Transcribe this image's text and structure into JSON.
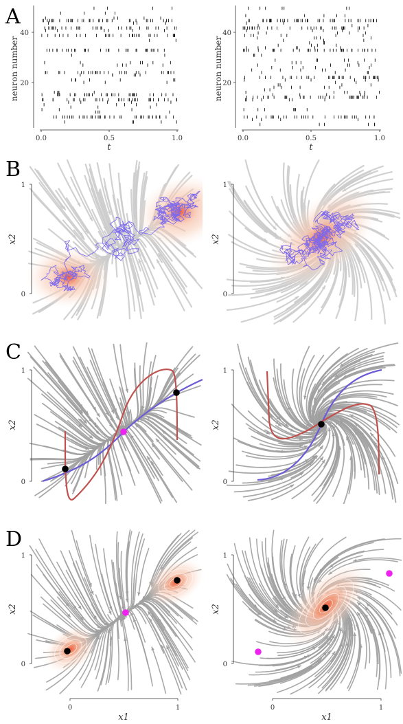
{
  "panel_letters": [
    "A",
    "B",
    "C",
    "D"
  ],
  "colors": {
    "spike": "#111111",
    "stream_light": "#cccccc",
    "stream_dark": "#a0a0a0",
    "density": "#f08060",
    "trajectory": "#7b68ee",
    "nullcline_red": "#c0504d",
    "nullcline_blue": "#6b5bd6",
    "fixed_point_stable": "#000000",
    "fixed_point_saddle": "#ee22ee"
  },
  "raster": {
    "ylabel": "neuron number",
    "xlabel": "t",
    "xticks": [
      "0.0",
      "0.5",
      "1.0"
    ],
    "yticks": [
      "20",
      "40"
    ]
  },
  "phase": {
    "ylabel": "x2",
    "xlabel": "x1",
    "yticks": [
      "0",
      "1"
    ],
    "xticks": [
      "0",
      "1"
    ]
  },
  "chart_data": [
    {
      "panel": "A-left",
      "type": "scatter",
      "xlabel": "t",
      "ylabel": "neuron number",
      "xlim": [
        0,
        1
      ],
      "ylim": [
        1,
        48
      ],
      "xticks": [
        0.0,
        0.5,
        1.0
      ],
      "yticks": [
        20,
        40
      ],
      "dense_neurons": [
        4,
        11,
        13,
        22,
        31,
        37,
        40,
        43
      ]
    },
    {
      "panel": "A-right",
      "type": "scatter",
      "xlabel": "t",
      "ylabel": "neuron number",
      "xlim": [
        0,
        1
      ],
      "ylim": [
        1,
        48
      ],
      "xticks": [
        0.0,
        0.5,
        1.0
      ],
      "yticks": [
        20,
        40
      ],
      "dense_neurons": [
        4,
        12,
        20,
        31,
        40,
        43
      ]
    },
    {
      "panel": "B-left",
      "type": "line",
      "ylabel": "x2",
      "yticks": [
        0,
        1
      ],
      "xlim": [
        -0.25,
        1.25
      ],
      "ylim": [
        -0.3,
        1.1
      ],
      "fixed_points": [
        {
          "x": 0.0,
          "y": 0.11,
          "type": "stable"
        },
        {
          "x": 1.0,
          "y": 0.79,
          "type": "stable"
        }
      ]
    },
    {
      "panel": "B-right",
      "type": "line",
      "ylabel": "x2",
      "yticks": [
        0,
        1
      ],
      "xlim": [
        -0.3,
        1.25
      ],
      "ylim": [
        -0.3,
        1.1
      ],
      "fixed_points": [
        {
          "x": 0.45,
          "y": 0.52,
          "type": "stable"
        }
      ]
    },
    {
      "panel": "C-left",
      "type": "line",
      "ylabel": "x2",
      "yticks": [
        0,
        1
      ],
      "xlim": [
        -0.25,
        1.25
      ],
      "ylim": [
        -0.2,
        1.05
      ],
      "fixed_points": [
        {
          "x": 0.0,
          "y": 0.11,
          "type": "stable"
        },
        {
          "x": 0.52,
          "y": 0.44,
          "type": "saddle"
        },
        {
          "x": 1.0,
          "y": 0.79,
          "type": "stable"
        }
      ]
    },
    {
      "panel": "C-right",
      "type": "line",
      "ylabel": "x2",
      "yticks": [
        0,
        1
      ],
      "xlim": [
        -0.3,
        1.25
      ],
      "ylim": [
        -0.2,
        1.05
      ],
      "fixed_points": [
        {
          "x": 0.45,
          "y": 0.52,
          "type": "stable"
        }
      ]
    },
    {
      "panel": "D-left",
      "type": "line",
      "xlabel": "x1",
      "ylabel": "x2",
      "xticks": [
        0,
        1
      ],
      "yticks": [
        0,
        1
      ],
      "xlim": [
        -0.25,
        1.25
      ],
      "ylim": [
        -0.25,
        1.05
      ],
      "fixed_points": [
        {
          "x": 0.0,
          "y": 0.11,
          "type": "stable"
        },
        {
          "x": 0.52,
          "y": 0.48,
          "type": "saddle"
        },
        {
          "x": 1.0,
          "y": 0.78,
          "type": "stable"
        }
      ]
    },
    {
      "panel": "D-right",
      "type": "line",
      "xlabel": "x1",
      "ylabel": "x2",
      "xticks": [
        0,
        1
      ],
      "yticks": [
        0,
        1
      ],
      "xlim": [
        -0.3,
        1.25
      ],
      "ylim": [
        -0.25,
        1.05
      ],
      "fixed_points": [
        {
          "x": 0.48,
          "y": 0.52,
          "type": "stable"
        },
        {
          "x": -0.14,
          "y": 0.12,
          "type": "saddle"
        },
        {
          "x": 1.1,
          "y": 0.82,
          "type": "saddle"
        }
      ]
    }
  ]
}
